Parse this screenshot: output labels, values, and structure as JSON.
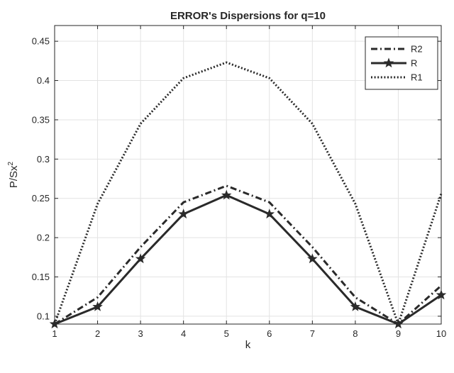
{
  "chart_data": {
    "type": "line",
    "title": "ERROR's Dispersions for q=10",
    "xlabel": "k",
    "ylabel_base": "P/Sx",
    "ylabel_sup": "2",
    "x": [
      1,
      2,
      3,
      4,
      5,
      6,
      7,
      8,
      9,
      10
    ],
    "xlim": [
      1,
      10
    ],
    "ylim": [
      0.09,
      0.47
    ],
    "xticks": [
      "1",
      "2",
      "3",
      "4",
      "5",
      "6",
      "7",
      "8",
      "9",
      "10"
    ],
    "yticks": [
      "0.1",
      "0.15",
      "0.2",
      "0.25",
      "0.3",
      "0.35",
      "0.4",
      "0.45"
    ],
    "ytick_values": [
      0.1,
      0.15,
      0.2,
      0.25,
      0.3,
      0.35,
      0.4,
      0.45
    ],
    "grid": true,
    "legend_position": "top-right",
    "series": [
      {
        "name": "R2",
        "style": "dashdot",
        "marker": "none",
        "values": [
          0.09,
          0.124,
          0.188,
          0.245,
          0.266,
          0.245,
          0.188,
          0.124,
          0.09,
          0.139
        ]
      },
      {
        "name": "R",
        "style": "solid",
        "marker": "star",
        "values": [
          0.09,
          0.112,
          0.173,
          0.23,
          0.254,
          0.23,
          0.173,
          0.112,
          0.09,
          0.127
        ]
      },
      {
        "name": "R1",
        "style": "dotted",
        "marker": "none",
        "values": [
          0.09,
          0.243,
          0.345,
          0.403,
          0.423,
          0.403,
          0.345,
          0.243,
          0.09,
          0.256
        ]
      }
    ]
  }
}
